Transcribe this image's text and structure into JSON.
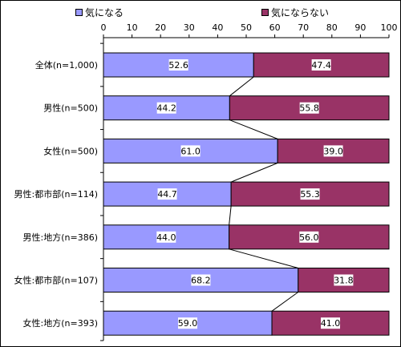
{
  "chart_data": {
    "type": "bar",
    "stacked": true,
    "orientation": "horizontal",
    "categories": [
      "全体(n=1,000)",
      "男性(n=500)",
      "女性(n=500)",
      "男性:都市部(n=114)",
      "男性:地方(n=386)",
      "女性:都市部(n=107)",
      "女性:地方(n=393)"
    ],
    "series": [
      {
        "name": "気になる",
        "color": "#9999ff",
        "values": [
          52.6,
          44.2,
          61.0,
          44.7,
          44.0,
          68.2,
          59.0
        ],
        "labels": [
          "52.6",
          "44.2",
          "61.0",
          "44.7",
          "44.0",
          "68.2",
          "59.0"
        ]
      },
      {
        "name": "気にならない",
        "color": "#993366",
        "values": [
          47.4,
          55.8,
          39.0,
          55.3,
          56.0,
          31.8,
          41.0
        ],
        "labels": [
          "47.4",
          "55.8",
          "39.0",
          "55.3",
          "56.0",
          "31.8",
          "41.0"
        ]
      }
    ],
    "xlim": [
      0,
      100
    ],
    "xticks": [
      0,
      10,
      20,
      30,
      40,
      50,
      60,
      70,
      80,
      90,
      100
    ],
    "xtick_position": "top",
    "legend_position": "top",
    "series_lines": true,
    "grid": false
  }
}
